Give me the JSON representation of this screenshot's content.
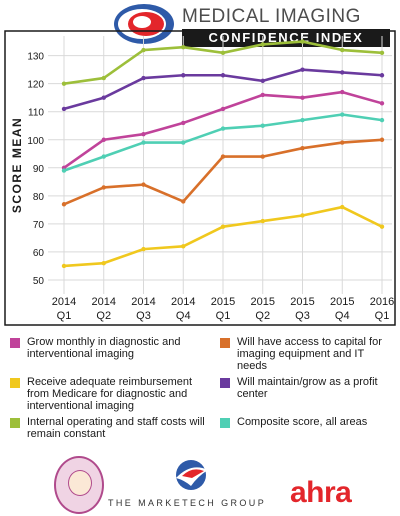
{
  "header": {
    "title_line1": "MEDICAL IMAGING",
    "title_line2": "CONFIDENCE INDEX"
  },
  "chart_data": {
    "type": "line",
    "title": "",
    "ylabel": "SCORE MEAN",
    "xlabel": "",
    "ylim": [
      45,
      137
    ],
    "yticks": [
      50,
      60,
      70,
      80,
      90,
      100,
      110,
      120,
      130
    ],
    "categories": [
      [
        "2014",
        "Q1"
      ],
      [
        "2014",
        "Q2"
      ],
      [
        "2014",
        "Q3"
      ],
      [
        "2014",
        "Q4"
      ],
      [
        "2015",
        "Q1"
      ],
      [
        "2015",
        "Q2"
      ],
      [
        "2015",
        "Q3"
      ],
      [
        "2015",
        "Q4"
      ],
      [
        "2016",
        "Q1"
      ]
    ],
    "grid": true,
    "series": [
      {
        "name": "Internal operating and staff costs will remain constant",
        "color": "#9dbf3a",
        "values": [
          120,
          122,
          132,
          133,
          131,
          134,
          135,
          132,
          131
        ]
      },
      {
        "name": "Will maintain/grow as a profit center",
        "color": "#6a3a9e",
        "values": [
          111,
          115,
          122,
          123,
          123,
          121,
          125,
          124,
          123
        ]
      },
      {
        "name": "Grow monthly in diagnostic and interventional imaging",
        "color": "#c0439a",
        "values": [
          90,
          100,
          102,
          106,
          111,
          116,
          115,
          117,
          113
        ]
      },
      {
        "name": "Composite score, all areas",
        "color": "#4fcfb4",
        "values": [
          89,
          94,
          99,
          99,
          104,
          105,
          107,
          109,
          107
        ]
      },
      {
        "name": "Will have access to capital for imaging equipment and IT needs",
        "color": "#d8702a",
        "values": [
          77,
          83,
          84,
          78,
          94,
          94,
          97,
          99,
          100
        ]
      },
      {
        "name": "Receive adequate reimbursement from Medicare for diagnostic and interventional imaging",
        "color": "#f0c81e",
        "values": [
          55,
          56,
          61,
          62,
          69,
          71,
          73,
          76,
          69
        ]
      }
    ]
  },
  "legend": [
    {
      "label": "Grow monthly in diagnostic and interventional imaging",
      "color": "#c0439a"
    },
    {
      "label": "Will have access to capital for imaging equipment and IT needs",
      "color": "#d8702a"
    },
    {
      "label": "Receive adequate reimbursement from Medicare for diagnostic and interventional imaging",
      "color": "#f0c81e"
    },
    {
      "label": "Will maintain/grow as a profit center",
      "color": "#6a3a9e"
    },
    {
      "label": "Internal operating and staff costs will remain constant",
      "color": "#9dbf3a"
    },
    {
      "label": "Composite score, all areas",
      "color": "#4fcfb4"
    }
  ],
  "footer": {
    "marketech_text": "THE MARKETECH GROUP",
    "ahra_text": "ahra"
  }
}
